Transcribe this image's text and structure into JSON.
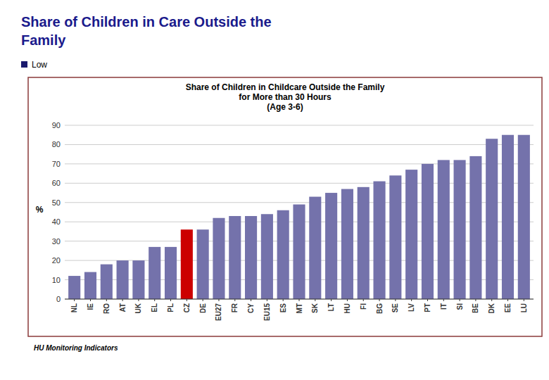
{
  "chart_data": {
    "type": "bar",
    "title": [
      "Share of Children in Care Outside the",
      "Family"
    ],
    "subtitle": "Share of Children in Childcare Outside the Family\nfor More than 30 Hours\n(Age 3-6)",
    "annotations": [
      "Low"
    ],
    "source": "HU Monitoring Indicators",
    "y_label": "%",
    "categories": [
      "NL",
      "IE",
      "RO",
      "AT",
      "UK",
      "EL",
      "PL",
      "CZ",
      "DE",
      "EU27",
      "FR",
      "CY",
      "EU15",
      "ES",
      "MT",
      "SK",
      "LT",
      "HU",
      "FI",
      "BG",
      "SE",
      "LV",
      "PT",
      "IT",
      "SI",
      "BE",
      "DK",
      "EE",
      "LU"
    ],
    "values": [
      12,
      14,
      18,
      20,
      20,
      27,
      27,
      36,
      36,
      42,
      43,
      43,
      44,
      46,
      49,
      53,
      55,
      57,
      58,
      61,
      64,
      67,
      70,
      72,
      72,
      74,
      83,
      85,
      85
    ],
    "colors": [
      "#7472ab",
      "#7472ab",
      "#7472ab",
      "#7472ab",
      "#7472ab",
      "#7472ab",
      "#7472ab",
      "#cc0000",
      "#7472ab",
      "#7472ab",
      "#7472ab",
      "#7472ab",
      "#7472ab",
      "#7472ab",
      "#7472ab",
      "#7472ab",
      "#7472ab",
      "#7472ab",
      "#7472ab",
      "#7472ab",
      "#7472ab",
      "#7472ab",
      "#7472ab",
      "#7472ab",
      "#7472ab",
      "#7472ab",
      "#7472ab",
      "#7472ab",
      "#7472ab"
    ],
    "ylim": [
      0,
      90
    ],
    "yticks": [
      0,
      10,
      20,
      30,
      40,
      50,
      60,
      70,
      80,
      90
    ],
    "grid": true
  }
}
